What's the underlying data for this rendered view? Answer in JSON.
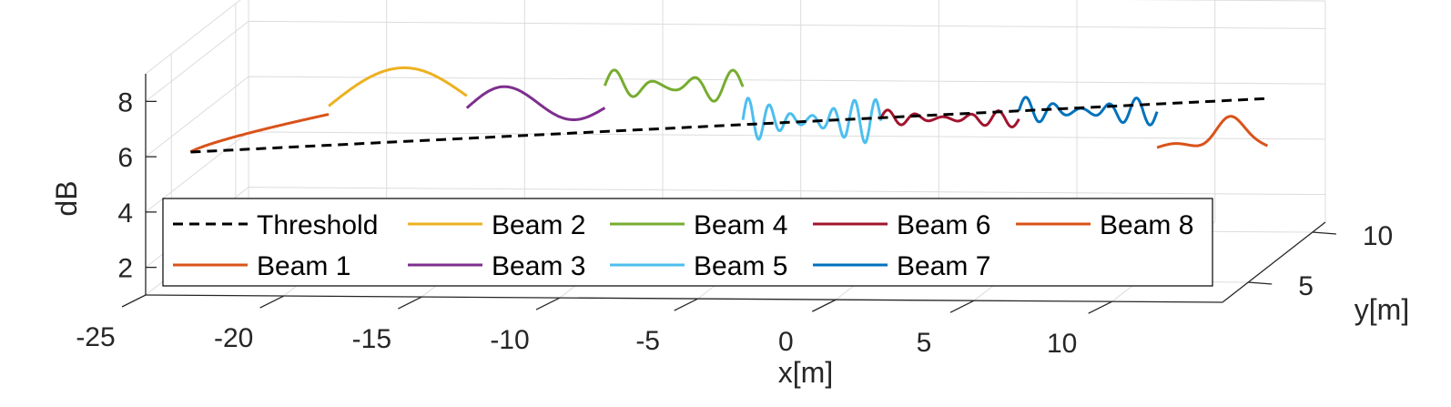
{
  "chart_data": {
    "type": "line",
    "title": "",
    "xlabel": "x[m]",
    "ylabel": "y[m]",
    "zlabel": "dB",
    "xlim": [
      -25,
      14
    ],
    "ylim": [
      3,
      11
    ],
    "zlim": [
      1,
      9
    ],
    "x_ticks": [
      "-25",
      "-20",
      "-15",
      "-10",
      "-5",
      "0",
      "5",
      "10"
    ],
    "y_ticks": [
      "5",
      "10"
    ],
    "z_ticks": [
      "2",
      "4",
      "6",
      "8"
    ],
    "grid": true,
    "legend_position": "lower-left",
    "threshold": {
      "name": "Threshold",
      "color": "#000000",
      "style": "dashed",
      "z_start": 4.9,
      "z_end": 7.1
    },
    "series": [
      {
        "name": "Beam 1",
        "color": "#D95319",
        "x_range": [
          -25,
          -20
        ],
        "shape": "rise",
        "params": [
          4.9,
          6.3
        ]
      },
      {
        "name": "Beam 2",
        "color": "#EDB120",
        "x_range": [
          -20,
          -15
        ],
        "shape": "arch",
        "params": [
          6.6,
          8.0,
          7.0
        ]
      },
      {
        "name": "Beam 3",
        "color": "#7E2F8E",
        "x_range": [
          -15,
          -10
        ],
        "shape": "wave",
        "params": [
          6.7,
          0.7,
          1.5
        ]
      },
      {
        "name": "Beam 4",
        "color": "#77AC30",
        "x_range": [
          -10,
          -5
        ],
        "shape": "osc",
        "params": [
          7.4,
          0.6,
          3.5
        ]
      },
      {
        "name": "Beam 5",
        "color": "#4DBEEE",
        "x_range": [
          -5,
          0
        ],
        "shape": "osc",
        "params": [
          6.2,
          0.8,
          6.5
        ]
      },
      {
        "name": "Beam 6",
        "color": "#A2142F",
        "x_range": [
          0,
          5
        ],
        "shape": "osc",
        "params": [
          6.3,
          0.3,
          5
        ]
      },
      {
        "name": "Beam 7",
        "color": "#0072BD",
        "x_range": [
          5,
          10
        ],
        "shape": "osc",
        "params": [
          6.6,
          0.5,
          5
        ]
      },
      {
        "name": "Beam 8",
        "color": "#D95319",
        "x_range": [
          10,
          14
        ],
        "shape": "tail",
        "params": [
          5.3,
          6.5
        ]
      }
    ]
  }
}
